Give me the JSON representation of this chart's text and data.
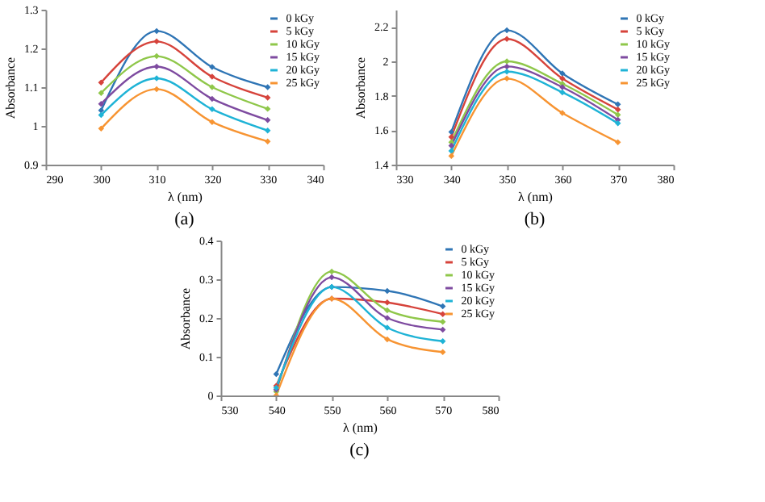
{
  "chart_data": [
    {
      "type": "line",
      "xlabel": "λ (nm)",
      "ylabel": "Absorbance",
      "annotations": [
        "(a)"
      ],
      "x": [
        300,
        310,
        320,
        330
      ],
      "xlim": [
        290,
        340
      ],
      "xticks": [
        290,
        300,
        310,
        320,
        330,
        340
      ],
      "ylim": [
        0.9,
        1.3
      ],
      "yticks": [
        0.9,
        1,
        1.1,
        1.2,
        1.3
      ],
      "grid": false,
      "legend": "top right",
      "marker": "diamond",
      "line_style": "solid",
      "series": [
        {
          "name": "0 kGy",
          "color": "#2f75b5",
          "values": [
            1.04,
            1.245,
            1.152,
            1.1
          ]
        },
        {
          "name": "5 kGy",
          "color": "#d6433b",
          "values": [
            1.112,
            1.218,
            1.127,
            1.073
          ]
        },
        {
          "name": "10 kGy",
          "color": "#8fc74a",
          "values": [
            1.085,
            1.18,
            1.1,
            1.044
          ]
        },
        {
          "name": "15 kGy",
          "color": "#7e4ba0",
          "values": [
            1.057,
            1.153,
            1.07,
            1.015
          ]
        },
        {
          "name": "20 kGy",
          "color": "#1fb3d6",
          "values": [
            1.028,
            1.123,
            1.043,
            0.988
          ]
        },
        {
          "name": "25 kGy",
          "color": "#f79432",
          "values": [
            0.993,
            1.095,
            1.01,
            0.96
          ]
        }
      ]
    },
    {
      "type": "line",
      "xlabel": "λ (nm)",
      "ylabel": "Absorbance",
      "annotations": [
        "(b)"
      ],
      "x": [
        340,
        350,
        360,
        370
      ],
      "xlim": [
        330,
        380
      ],
      "xticks": [
        330,
        340,
        350,
        360,
        370,
        380
      ],
      "ylim": [
        1.4,
        2.3
      ],
      "yticks": [
        1.4,
        1.6,
        1.8,
        2,
        2.2
      ],
      "grid": false,
      "legend": "top right",
      "marker": "diamond",
      "line_style": "solid",
      "series": [
        {
          "name": "0 kGy",
          "color": "#2f75b5",
          "values": [
            1.59,
            2.18,
            1.93,
            1.75
          ]
        },
        {
          "name": "5 kGy",
          "color": "#d6433b",
          "values": [
            1.56,
            2.13,
            1.9,
            1.72
          ]
        },
        {
          "name": "10 kGy",
          "color": "#8fc74a",
          "values": [
            1.53,
            2.0,
            1.87,
            1.69
          ]
        },
        {
          "name": "15 kGy",
          "color": "#7e4ba0",
          "values": [
            1.51,
            1.97,
            1.85,
            1.66
          ]
        },
        {
          "name": "20 kGy",
          "color": "#1fb3d6",
          "values": [
            1.48,
            1.94,
            1.82,
            1.64
          ]
        },
        {
          "name": "25 kGy",
          "color": "#f79432",
          "values": [
            1.45,
            1.9,
            1.7,
            1.53
          ]
        }
      ]
    },
    {
      "type": "line",
      "xlabel": "λ (nm)",
      "ylabel": "Absorbance",
      "annotations": [
        "(c)"
      ],
      "x": [
        540,
        550,
        560,
        570
      ],
      "xlim": [
        530,
        580
      ],
      "xticks": [
        530,
        540,
        550,
        560,
        570,
        580
      ],
      "ylim": [
        0,
        0.4
      ],
      "yticks": [
        0,
        0.1,
        0.2,
        0.3,
        0.4
      ],
      "grid": false,
      "legend": "top right",
      "marker": "diamond",
      "line_style": "solid",
      "series": [
        {
          "name": "0 kGy",
          "color": "#2f75b5",
          "values": [
            0.055,
            0.28,
            0.27,
            0.23
          ]
        },
        {
          "name": "5 kGy",
          "color": "#d6433b",
          "values": [
            0.025,
            0.25,
            0.24,
            0.21
          ]
        },
        {
          "name": "10 kGy",
          "color": "#8fc74a",
          "values": [
            0.01,
            0.32,
            0.22,
            0.19
          ]
        },
        {
          "name": "15 kGy",
          "color": "#7e4ba0",
          "values": [
            0.015,
            0.305,
            0.2,
            0.17
          ]
        },
        {
          "name": "20 kGy",
          "color": "#1fb3d6",
          "values": [
            0.02,
            0.28,
            0.175,
            0.14
          ]
        },
        {
          "name": "25 kGy",
          "color": "#f79432",
          "values": [
            0.0,
            0.25,
            0.145,
            0.112
          ]
        }
      ]
    }
  ]
}
